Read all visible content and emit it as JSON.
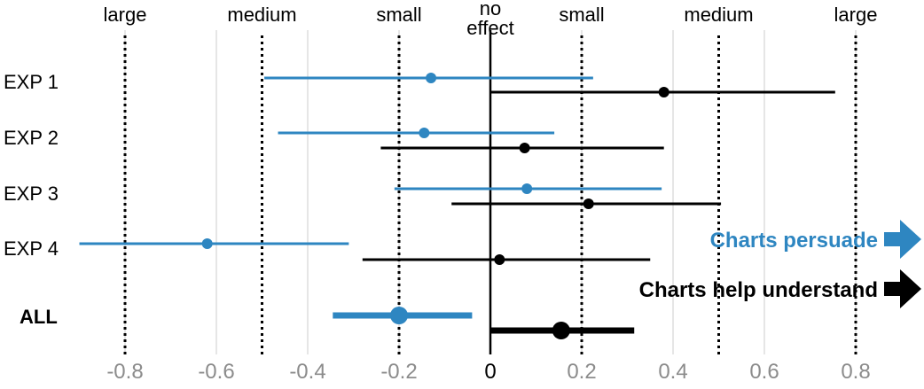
{
  "chart_data": {
    "type": "forest",
    "x_ticks": [
      -0.8,
      -0.6,
      -0.4,
      -0.2,
      0,
      0.2,
      0.4,
      0.6,
      0.8
    ],
    "x_tick_labels": [
      "-0.8",
      "-0.6",
      "-0.4",
      "-0.2",
      "0",
      "0.2",
      "0.4",
      "0.6",
      "0.8"
    ],
    "xlim": [
      -0.9,
      0.93
    ],
    "grid": "vertical",
    "effect_thresholds": [
      {
        "x": -0.8,
        "label": "large"
      },
      {
        "x": -0.5,
        "label": "medium"
      },
      {
        "x": -0.2,
        "label": "small"
      },
      {
        "x": 0.2,
        "label": "small"
      },
      {
        "x": 0.5,
        "label": "medium"
      },
      {
        "x": 0.8,
        "label": "large"
      }
    ],
    "no_effect_label": [
      "no",
      "effect"
    ],
    "rows": [
      "EXP 1",
      "EXP 2",
      "EXP 3",
      "EXP 4",
      "ALL"
    ],
    "series": [
      {
        "name": "Charts persuade",
        "color": "#2e86c1",
        "points": [
          {
            "row": "EXP 1",
            "estimate": -0.13,
            "ci": [
              -0.495,
              0.225
            ]
          },
          {
            "row": "EXP 2",
            "estimate": -0.145,
            "ci": [
              -0.465,
              0.14
            ]
          },
          {
            "row": "EXP 3",
            "estimate": 0.08,
            "ci": [
              -0.21,
              0.375
            ]
          },
          {
            "row": "EXP 4",
            "estimate": -0.62,
            "ci": [
              -0.9,
              -0.31
            ]
          },
          {
            "row": "ALL",
            "estimate": -0.2,
            "ci": [
              -0.345,
              -0.04
            ]
          }
        ]
      },
      {
        "name": "Charts help understand",
        "color": "#000000",
        "points": [
          {
            "row": "EXP 1",
            "estimate": 0.38,
            "ci": [
              0.0,
              0.755
            ]
          },
          {
            "row": "EXP 2",
            "estimate": 0.075,
            "ci": [
              -0.24,
              0.38
            ]
          },
          {
            "row": "EXP 3",
            "estimate": 0.215,
            "ci": [
              -0.085,
              0.505
            ]
          },
          {
            "row": "EXP 4",
            "estimate": 0.02,
            "ci": [
              -0.28,
              0.35
            ]
          },
          {
            "row": "ALL",
            "estimate": 0.155,
            "ci": [
              0.0,
              0.315
            ]
          }
        ]
      }
    ],
    "legend": [
      {
        "label": "Charts persuade",
        "color": "#2e86c1",
        "icon": "right-arrow-icon"
      },
      {
        "label": "Charts help understand",
        "color": "#000000",
        "icon": "right-arrow-icon"
      }
    ],
    "legend_position": "right"
  }
}
